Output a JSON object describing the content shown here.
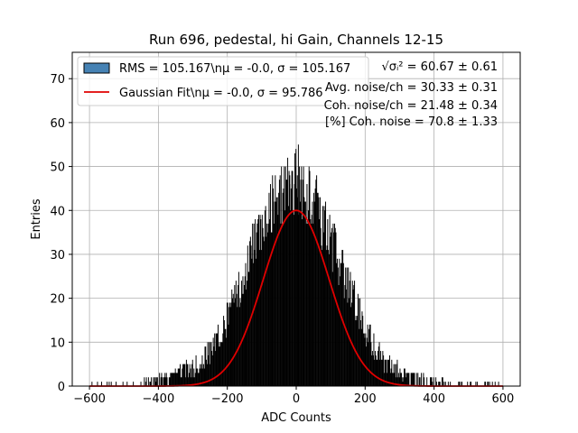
{
  "chart_data": {
    "type": "bar",
    "title": "Run 696, pedestal, hi Gain, Channels 12-15",
    "xlabel": "ADC Counts",
    "ylabel": "Entries",
    "xlim": [
      -650,
      650
    ],
    "ylim": [
      0,
      76
    ],
    "xticks": [
      -600,
      -400,
      -200,
      0,
      200,
      400,
      600
    ],
    "yticks": [
      0,
      10,
      20,
      30,
      40,
      50,
      60,
      70
    ],
    "grid": true,
    "legend_position": "top-left",
    "series": [
      {
        "name": "RMS = 105.167\\nμ = -0.0, σ = 105.167",
        "kind": "histogram",
        "color": "#000000",
        "legend_color": "#4682b4",
        "bins_description": "dense 2-count bins from -600 to 600",
        "bin_centers": [
          -560,
          -500,
          -460,
          -440,
          -420,
          -400,
          -380,
          -360,
          -340,
          -320,
          -300,
          -280,
          -260,
          -240,
          -220,
          -200,
          -180,
          -160,
          -140,
          -120,
          -100,
          -80,
          -60,
          -40,
          -20,
          0,
          20,
          40,
          60,
          80,
          100,
          120,
          140,
          160,
          180,
          200,
          220,
          240,
          260,
          280,
          300,
          320,
          340,
          360,
          380,
          400,
          420,
          440,
          460,
          500,
          540,
          580
        ],
        "values": [
          0.5,
          0.5,
          0.8,
          1,
          1.2,
          1.5,
          2,
          2.5,
          3,
          3.5,
          4,
          5,
          7,
          9,
          12,
          15,
          19,
          24,
          28,
          33,
          36,
          40,
          42,
          44,
          46,
          47,
          45,
          43,
          41,
          37,
          33,
          29,
          25,
          21,
          17,
          13,
          10,
          7,
          5,
          4,
          3.5,
          3,
          2.5,
          2,
          1.5,
          1.2,
          1,
          0.8,
          0.6,
          0.5,
          0.5,
          0.5
        ],
        "peak_values": [
          53,
          55,
          50,
          48
        ]
      },
      {
        "name": "Gaussian Fit\\nμ = -0.0, σ = 95.786",
        "kind": "line",
        "color": "#e00000",
        "function": "gaussian",
        "mu": 0.0,
        "sigma": 95.786,
        "amplitude": 40
      }
    ],
    "annotations": [
      "√σᵢ² = 60.67 ± 0.61",
      "Avg. noise/ch = 30.33 ± 0.31",
      "Coh. noise/ch = 21.48 ± 0.34",
      "[%] Coh. noise = 70.8 ± 1.33"
    ]
  },
  "legend": {
    "rms_label": "RMS = 105.167\\nμ = -0.0, σ = 105.167",
    "fit_label": "Gaussian Fit\\nμ = -0.0, σ = 95.786"
  },
  "stats": {
    "sigma_line": "√σᵢ² = 60.67 ± 0.61",
    "avg_noise": "Avg. noise/ch = 30.33 ± 0.31",
    "coh_noise": "Coh. noise/ch = 21.48 ± 0.34",
    "coh_pct": "[%] Coh. noise = 70.8 ± 1.33"
  }
}
